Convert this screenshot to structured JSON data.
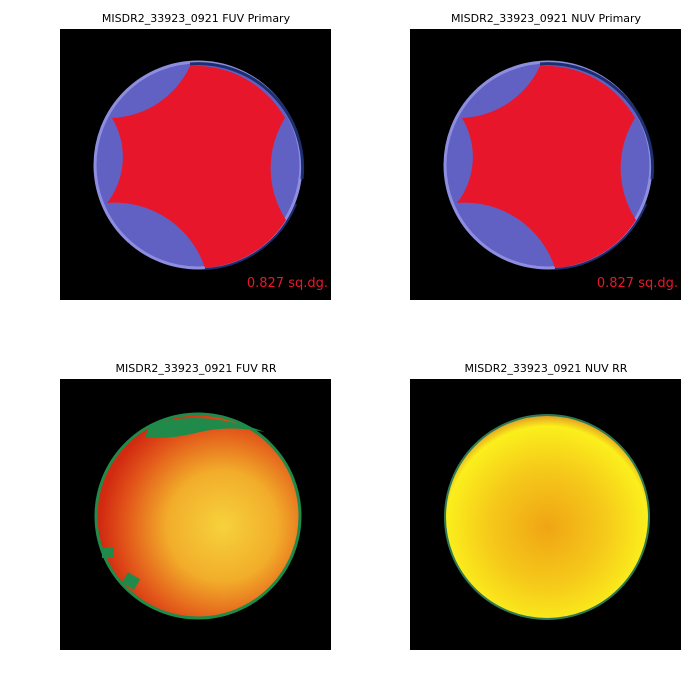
{
  "panels": [
    {
      "title": "MISDR2_33923_0921 FUV Primary",
      "area_label": "0.827 sq.dg."
    },
    {
      "title": "MISDR2_33923_0921 NUV Primary",
      "area_label": "0.827 sq.dg."
    },
    {
      "title": "MISDR2_33923_0921 FUV RR"
    },
    {
      "title": "MISDR2_33923_0921 NUV RR"
    }
  ]
}
